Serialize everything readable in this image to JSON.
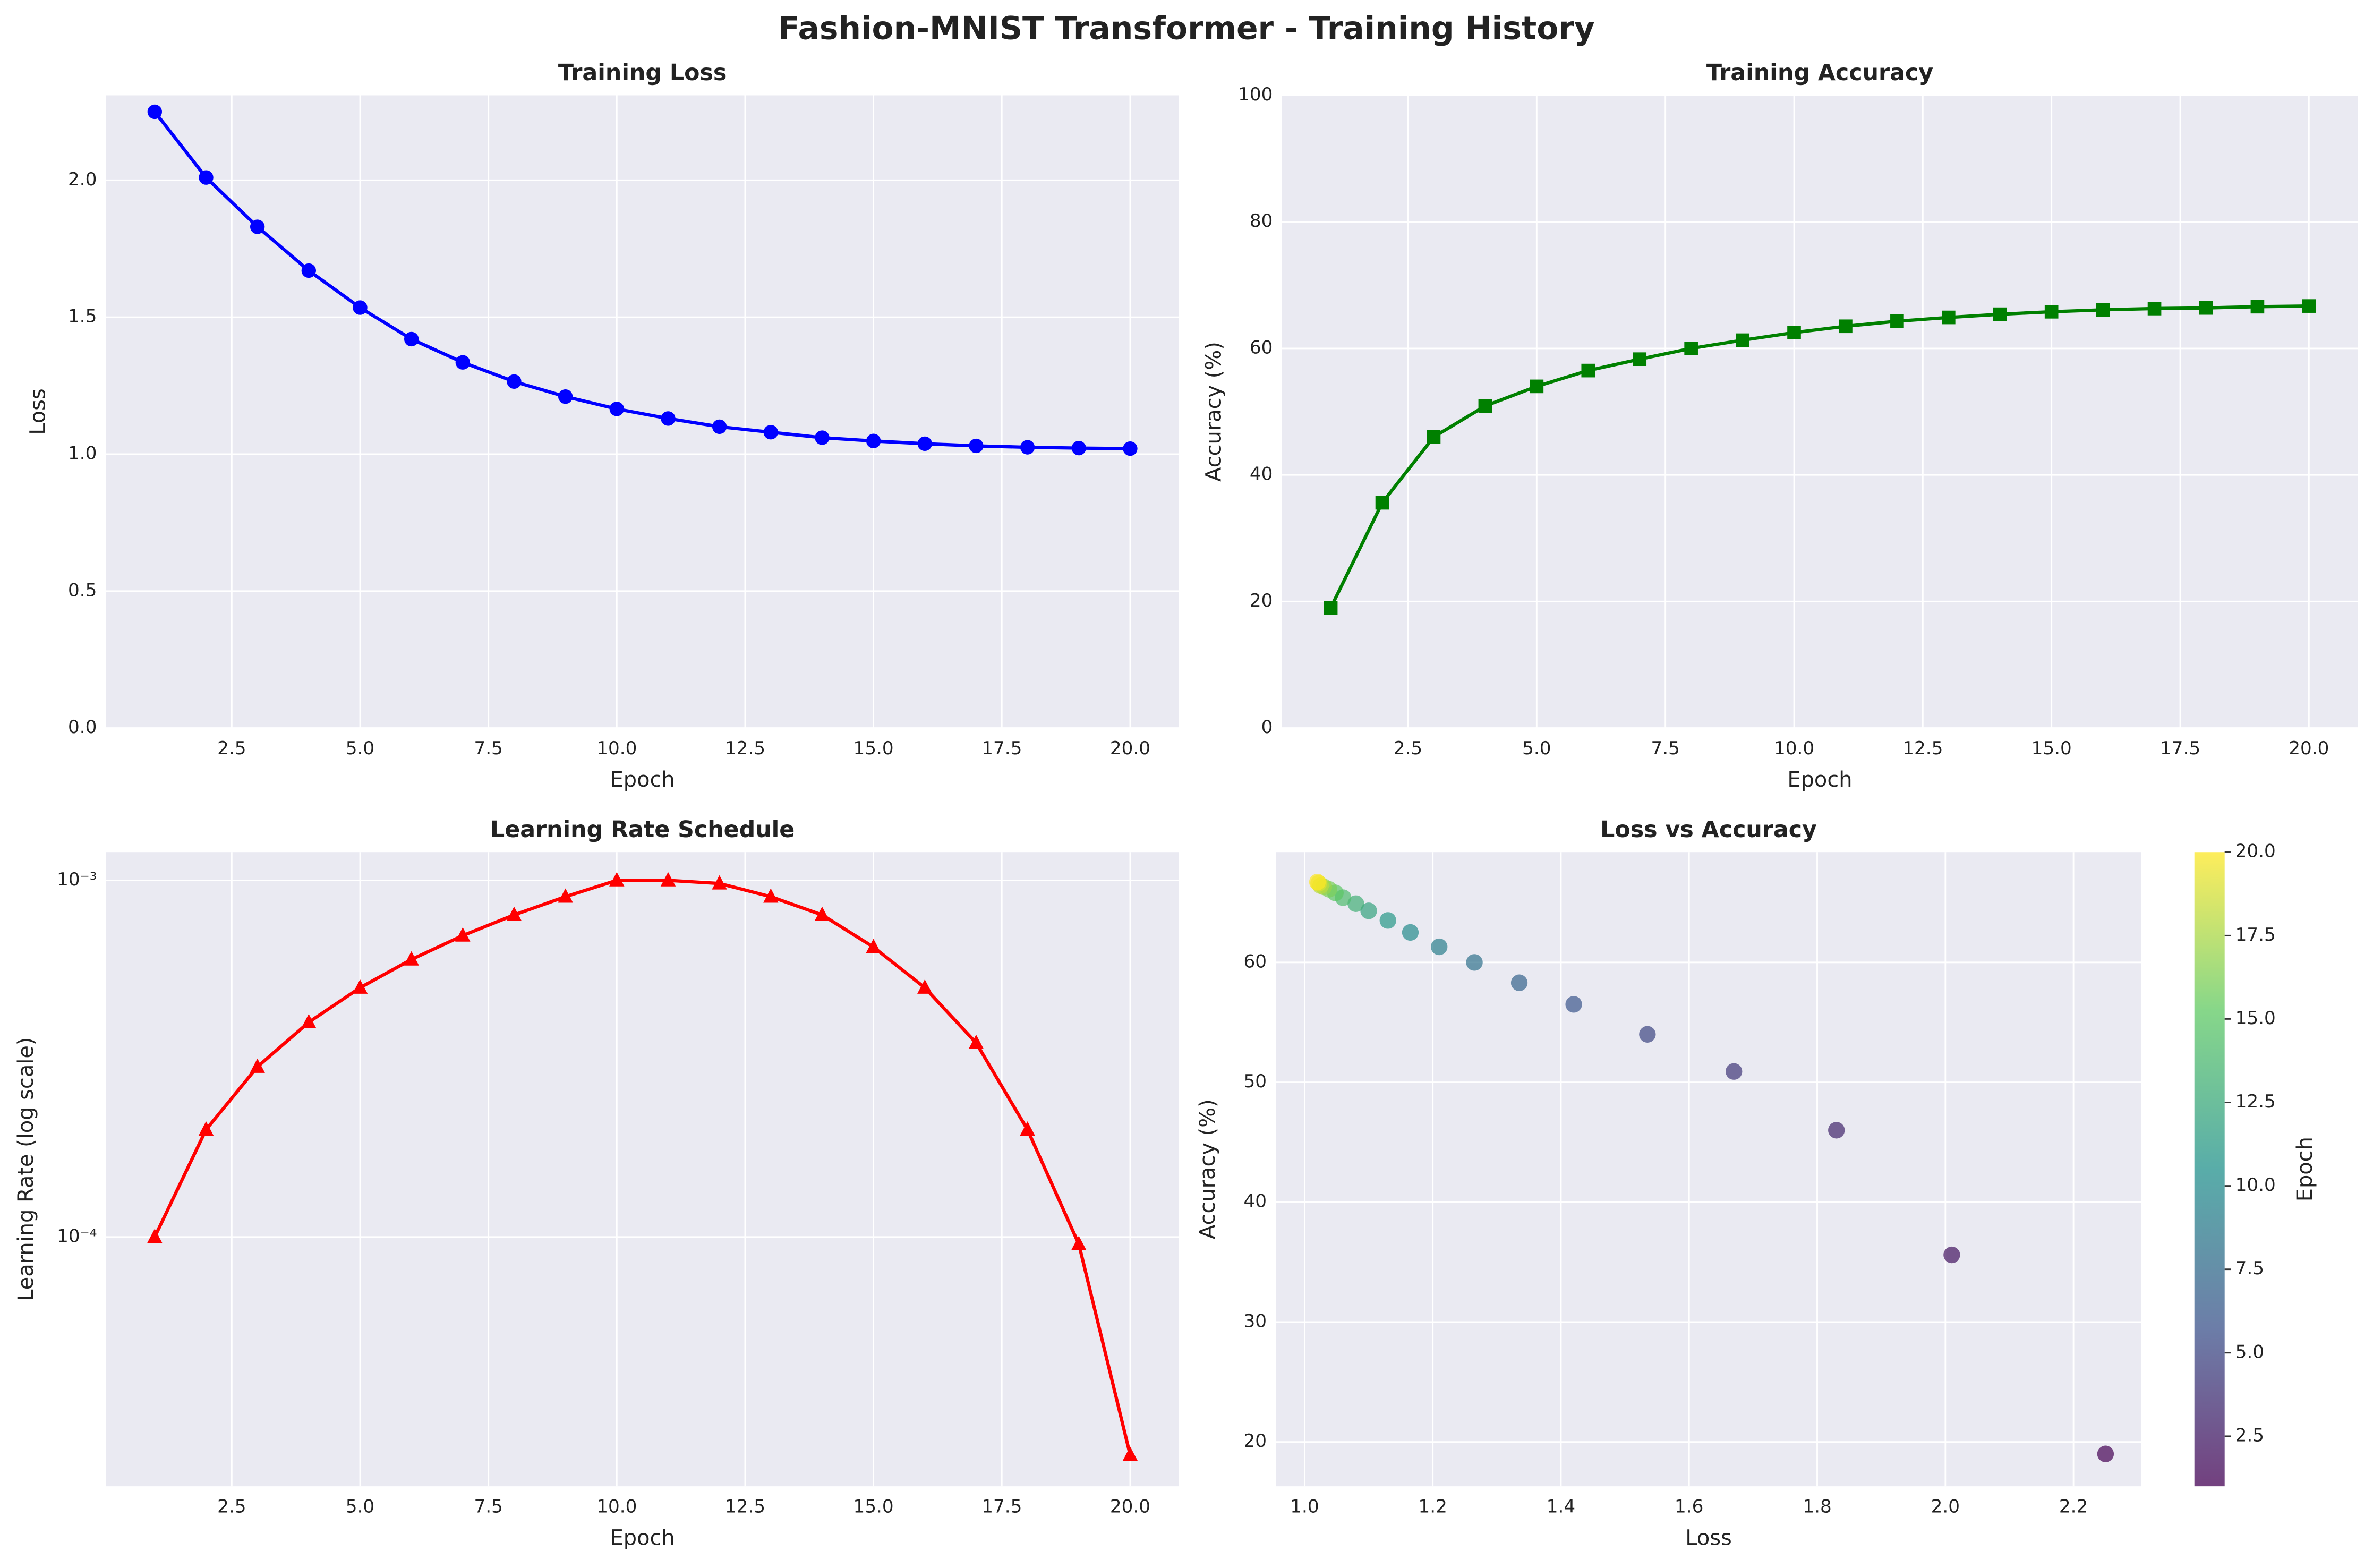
{
  "title": "Fashion-MNIST Transformer - Training History",
  "chart_data": [
    {
      "type": "line",
      "title": "Training Loss",
      "xlabel": "Epoch",
      "ylabel": "Loss",
      "x": [
        1,
        2,
        3,
        4,
        5,
        6,
        7,
        8,
        9,
        10,
        11,
        12,
        13,
        14,
        15,
        16,
        17,
        18,
        19,
        20
      ],
      "series": [
        {
          "color": "#0000ff",
          "marker": "circle",
          "values": [
            2.25,
            2.01,
            1.83,
            1.67,
            1.535,
            1.42,
            1.335,
            1.265,
            1.21,
            1.165,
            1.13,
            1.1,
            1.08,
            1.06,
            1.048,
            1.038,
            1.03,
            1.025,
            1.022,
            1.02
          ]
        }
      ],
      "xlim": [
        0.05,
        20.95
      ],
      "ylim": [
        0,
        2.31
      ],
      "xticks": [
        2.5,
        {
          "value": 5,
          "label": "5.0"
        },
        7.5,
        {
          "value": 10,
          "label": "10.0"
        },
        12.5,
        {
          "value": 15,
          "label": "15.0"
        },
        17.5,
        {
          "value": 20,
          "label": "20.0"
        }
      ],
      "yticks": [
        {
          "value": 0,
          "label": "0.0"
        },
        0.5,
        {
          "value": 1,
          "label": "1.0"
        },
        1.5,
        {
          "value": 2,
          "label": "2.0"
        }
      ],
      "grid": true
    },
    {
      "type": "line",
      "title": "Training Accuracy",
      "xlabel": "Epoch",
      "ylabel": "Accuracy (%)",
      "x": [
        1,
        2,
        3,
        4,
        5,
        6,
        7,
        8,
        9,
        10,
        11,
        12,
        13,
        14,
        15,
        16,
        17,
        18,
        19,
        20
      ],
      "series": [
        {
          "color": "#008000",
          "marker": "square",
          "values": [
            19,
            35.6,
            46,
            50.9,
            54,
            56.5,
            58.3,
            60,
            61.3,
            62.5,
            63.5,
            64.3,
            64.9,
            65.4,
            65.8,
            66.1,
            66.3,
            66.4,
            66.6,
            66.7
          ]
        }
      ],
      "xlim": [
        0.05,
        20.95
      ],
      "ylim": [
        0,
        100
      ],
      "xticks": [
        2.5,
        {
          "value": 5,
          "label": "5.0"
        },
        7.5,
        {
          "value": 10,
          "label": "10.0"
        },
        12.5,
        {
          "value": 15,
          "label": "15.0"
        },
        17.5,
        {
          "value": 20,
          "label": "20.0"
        }
      ],
      "yticks": [
        0,
        20,
        40,
        60,
        80,
        100
      ],
      "grid": true
    },
    {
      "type": "line",
      "title": "Learning Rate Schedule",
      "xlabel": "Epoch",
      "ylabel": "Learning Rate (log scale)",
      "yscale": "log",
      "x": [
        1,
        2,
        3,
        4,
        5,
        6,
        7,
        8,
        9,
        10,
        11,
        12,
        13,
        14,
        15,
        16,
        17,
        18,
        19,
        20
      ],
      "series": [
        {
          "color": "#ff0000",
          "marker": "triangle",
          "values": [
            0.0001,
            0.0002,
            0.0003,
            0.0004,
            0.0005,
            0.0006,
            0.0007,
            0.0008,
            0.0009,
            0.001,
            0.001,
            0.00098,
            0.0009,
            0.0008,
            0.00065,
            0.0005,
            0.00035,
            0.0002,
            9.55e-05,
            2.45e-05
          ]
        }
      ],
      "xlim": [
        0.05,
        20.95
      ],
      "ylim": [
        2e-05,
        0.0012
      ],
      "xticks": [
        2.5,
        {
          "value": 5,
          "label": "5.0"
        },
        7.5,
        {
          "value": 10,
          "label": "10.0"
        },
        12.5,
        {
          "value": 15,
          "label": "15.0"
        },
        17.5,
        {
          "value": 20,
          "label": "20.0"
        }
      ],
      "yticks": [
        {
          "value": 0.0001,
          "label": "10⁻⁴"
        },
        {
          "value": 0.001,
          "label": "10⁻³"
        }
      ],
      "grid": true
    },
    {
      "type": "scatter",
      "title": "Loss vs Accuracy",
      "xlabel": "Loss",
      "ylabel": "Accuracy (%)",
      "x": [
        2.25,
        2.01,
        1.83,
        1.67,
        1.535,
        1.42,
        1.335,
        1.265,
        1.21,
        1.165,
        1.13,
        1.1,
        1.08,
        1.06,
        1.048,
        1.038,
        1.03,
        1.025,
        1.022,
        1.02
      ],
      "series": [
        {
          "colormap": "viridis",
          "values": [
            19,
            35.6,
            46,
            50.9,
            54,
            56.5,
            58.3,
            60,
            61.3,
            62.5,
            63.5,
            64.3,
            64.9,
            65.4,
            65.8,
            66.1,
            66.3,
            66.4,
            66.6,
            66.7
          ],
          "c": [
            1,
            2,
            3,
            4,
            5,
            6,
            7,
            8,
            9,
            10,
            11,
            12,
            13,
            14,
            15,
            16,
            17,
            18,
            19,
            20
          ]
        }
      ],
      "xlim": [
        0.955,
        2.306
      ],
      "ylim": [
        16.3,
        69.2
      ],
      "xticks": [
        {
          "value": 1,
          "label": "1.0"
        },
        1.2,
        1.4,
        1.6,
        1.8,
        {
          "value": 2,
          "label": "2.0"
        },
        2.2
      ],
      "yticks": [
        20,
        30,
        40,
        50,
        60
      ],
      "grid": true,
      "colorbar": {
        "label": "Epoch",
        "lim": [
          1,
          20
        ],
        "ticks": [
          2.5,
          {
            "value": 5,
            "label": "5.0"
          },
          7.5,
          {
            "value": 10,
            "label": "10.0"
          },
          12.5,
          {
            "value": 15,
            "label": "15.0"
          },
          17.5,
          {
            "value": 20,
            "label": "20.0"
          }
        ]
      }
    }
  ]
}
